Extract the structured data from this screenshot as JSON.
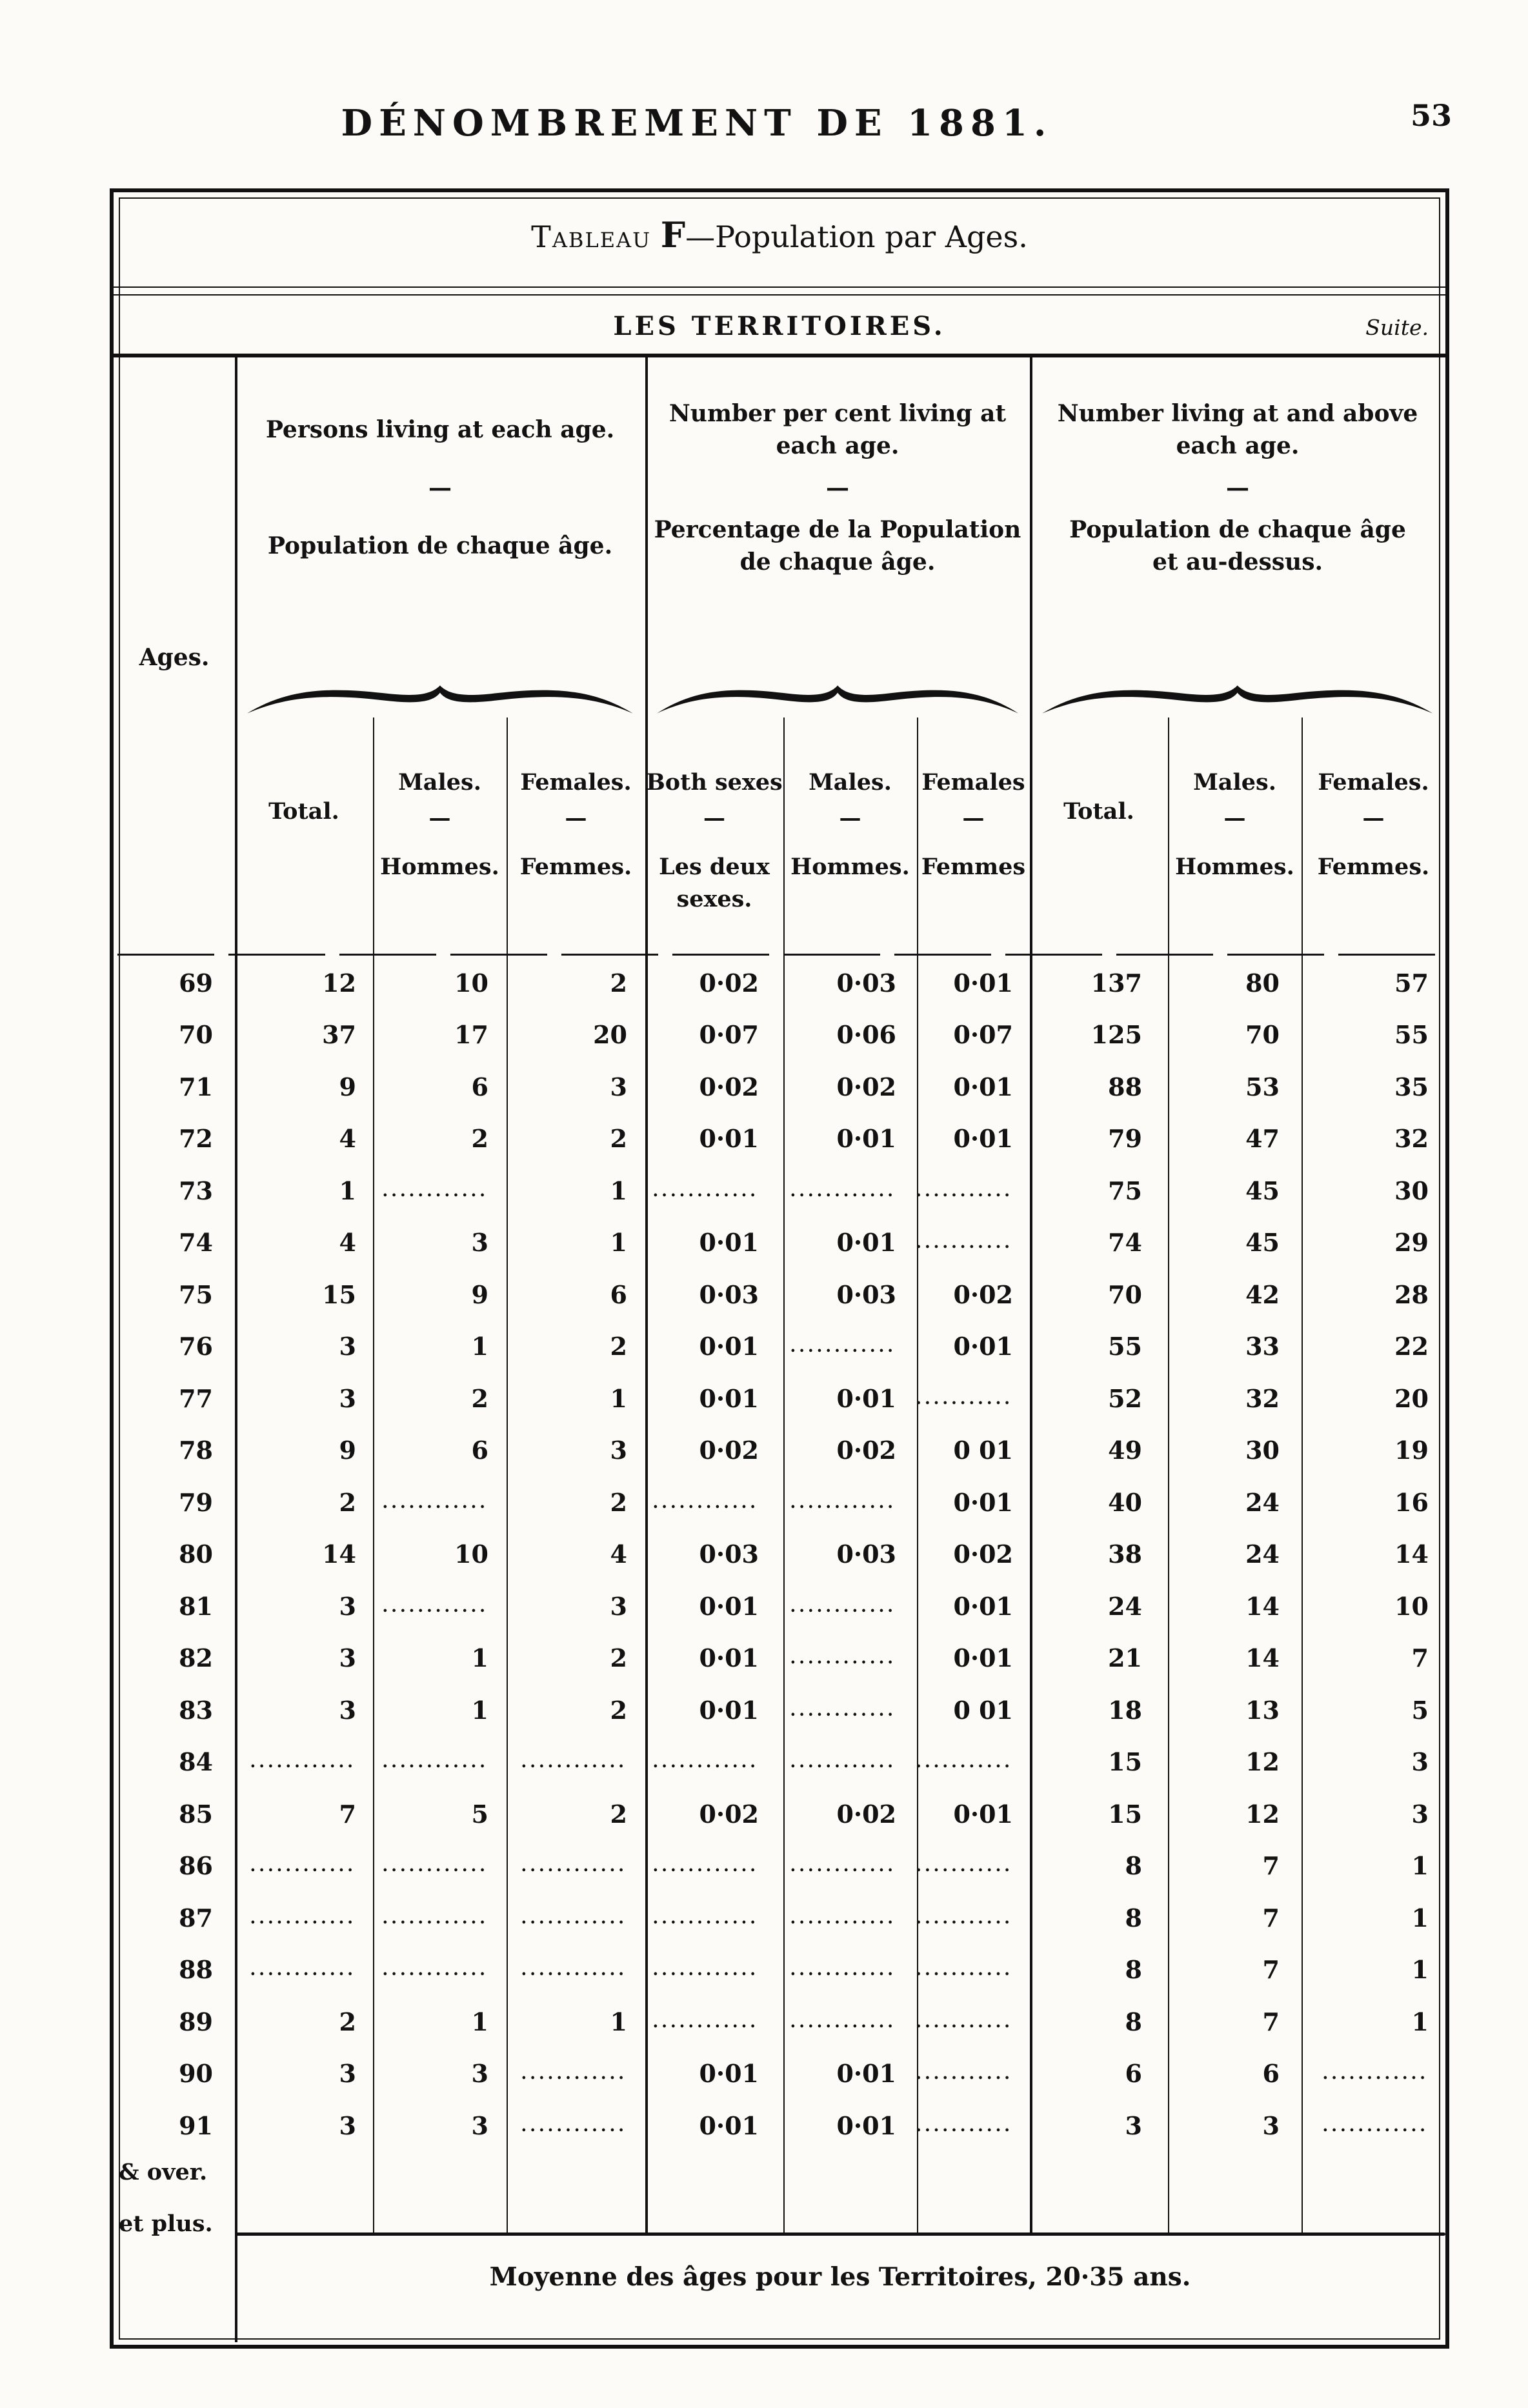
{
  "page": {
    "header_title": "DÉNOMBREMENT DE 1881.",
    "page_number": "53"
  },
  "table": {
    "title": {
      "prefix": "Tableau",
      "letter": "F",
      "rest": "—Population par Ages."
    },
    "region": "LES TERRITOIRES.",
    "suite": "Suite.",
    "ages_label": "Ages.",
    "groups": [
      {
        "en": [
          "Persons living at each age."
        ],
        "dash": "—",
        "fr": [
          "Population de chaque âge."
        ]
      },
      {
        "en": [
          "Number per cent living at",
          "each age."
        ],
        "dash": "—",
        "fr": [
          "Percentage de la Population",
          "de chaque âge."
        ]
      },
      {
        "en": [
          "Number living at and above",
          "each age."
        ],
        "dash": "—",
        "fr": [
          "Population de chaque âge",
          "et au-dessus."
        ]
      }
    ],
    "subheaders": [
      {
        "en": "Total.",
        "dash": "",
        "fr": ""
      },
      {
        "en": "Males.",
        "dash": "—",
        "fr": "Hommes."
      },
      {
        "en": "Females.",
        "dash": "—",
        "fr": "Femmes."
      },
      {
        "en": "Both sexes",
        "dash": "—",
        "fr": "Les deux sexes."
      },
      {
        "en": "Males.",
        "dash": "—",
        "fr": "Hommes."
      },
      {
        "en": "Females",
        "dash": "—",
        "fr": "Femmes"
      },
      {
        "en": "Total.",
        "dash": "",
        "fr": ""
      },
      {
        "en": "Males.",
        "dash": "—",
        "fr": "Hommes."
      },
      {
        "en": "Females.",
        "dash": "—",
        "fr": "Femmes."
      }
    ],
    "rows": [
      {
        "age": "69",
        "c": [
          "12",
          "10",
          "2",
          "0·02",
          "0·03",
          "0·01",
          "137",
          "80",
          "57"
        ]
      },
      {
        "age": "70",
        "c": [
          "37",
          "17",
          "20",
          "0·07",
          "0·06",
          "0·07",
          "125",
          "70",
          "55"
        ]
      },
      {
        "age": "71",
        "c": [
          "9",
          "6",
          "3",
          "0·02",
          "0·02",
          "0·01",
          "88",
          "53",
          "35"
        ]
      },
      {
        "age": "72",
        "c": [
          "4",
          "2",
          "2",
          "0·01",
          "0·01",
          "0·01",
          "79",
          "47",
          "32"
        ]
      },
      {
        "age": "73",
        "c": [
          "1",
          "............",
          "1",
          "............",
          "............",
          "............",
          "75",
          "45",
          "30"
        ]
      },
      {
        "age": "74",
        "c": [
          "4",
          "3",
          "1",
          "0·01",
          "0·01",
          "............",
          "74",
          "45",
          "29"
        ]
      },
      {
        "age": "75",
        "c": [
          "15",
          "9",
          "6",
          "0·03",
          "0·03",
          "0·02",
          "70",
          "42",
          "28"
        ]
      },
      {
        "age": "76",
        "c": [
          "3",
          "1",
          "2",
          "0·01",
          "............",
          "0·01",
          "55",
          "33",
          "22"
        ]
      },
      {
        "age": "77",
        "c": [
          "3",
          "2",
          "1",
          "0·01",
          "0·01",
          "............",
          "52",
          "32",
          "20"
        ]
      },
      {
        "age": "78",
        "c": [
          "9",
          "6",
          "3",
          "0·02",
          "0·02",
          "0 01",
          "49",
          "30",
          "19"
        ]
      },
      {
        "age": "79",
        "c": [
          "2",
          "............",
          "2",
          "............",
          "............",
          "0·01",
          "40",
          "24",
          "16"
        ]
      },
      {
        "age": "80",
        "c": [
          "14",
          "10",
          "4",
          "0·03",
          "0·03",
          "0·02",
          "38",
          "24",
          "14"
        ]
      },
      {
        "age": "81",
        "c": [
          "3",
          "............",
          "3",
          "0·01",
          "............",
          "0·01",
          "24",
          "14",
          "10"
        ]
      },
      {
        "age": "82",
        "c": [
          "3",
          "1",
          "2",
          "0·01",
          "............",
          "0·01",
          "21",
          "14",
          "7"
        ]
      },
      {
        "age": "83",
        "c": [
          "3",
          "1",
          "2",
          "0·01",
          "............",
          "0 01",
          "18",
          "13",
          "5"
        ]
      },
      {
        "age": "84",
        "c": [
          "............",
          "............",
          "............",
          "............",
          "............",
          "............",
          "15",
          "12",
          "3"
        ]
      },
      {
        "age": "85",
        "c": [
          "7",
          "5",
          "2",
          "0·02",
          "0·02",
          "0·01",
          "15",
          "12",
          "3"
        ]
      },
      {
        "age": "86",
        "c": [
          "............",
          "............",
          "............",
          "............",
          "............",
          "............",
          "8",
          "7",
          "1"
        ]
      },
      {
        "age": "87",
        "c": [
          "............",
          "............",
          "............",
          "............",
          "............",
          "............",
          "8",
          "7",
          "1"
        ]
      },
      {
        "age": "88",
        "c": [
          "............",
          "............",
          "............",
          "............",
          "............",
          "............",
          "8",
          "7",
          "1"
        ]
      },
      {
        "age": "89",
        "c": [
          "2",
          "1",
          "1",
          "............",
          "............",
          "............",
          "8",
          "7",
          "1"
        ]
      },
      {
        "age": "90",
        "c": [
          "3",
          "3",
          "............",
          "0·01",
          "0·01",
          "............",
          "6",
          "6",
          "............"
        ]
      },
      {
        "age": "91",
        "c": [
          "3",
          "3",
          "............",
          "0·01",
          "0·01",
          "............",
          "3",
          "3",
          "............"
        ]
      }
    ],
    "over_label": [
      "& over.",
      "et plus."
    ],
    "footer": "Moyenne des âges pour les Territoires, 20·35 ans."
  }
}
